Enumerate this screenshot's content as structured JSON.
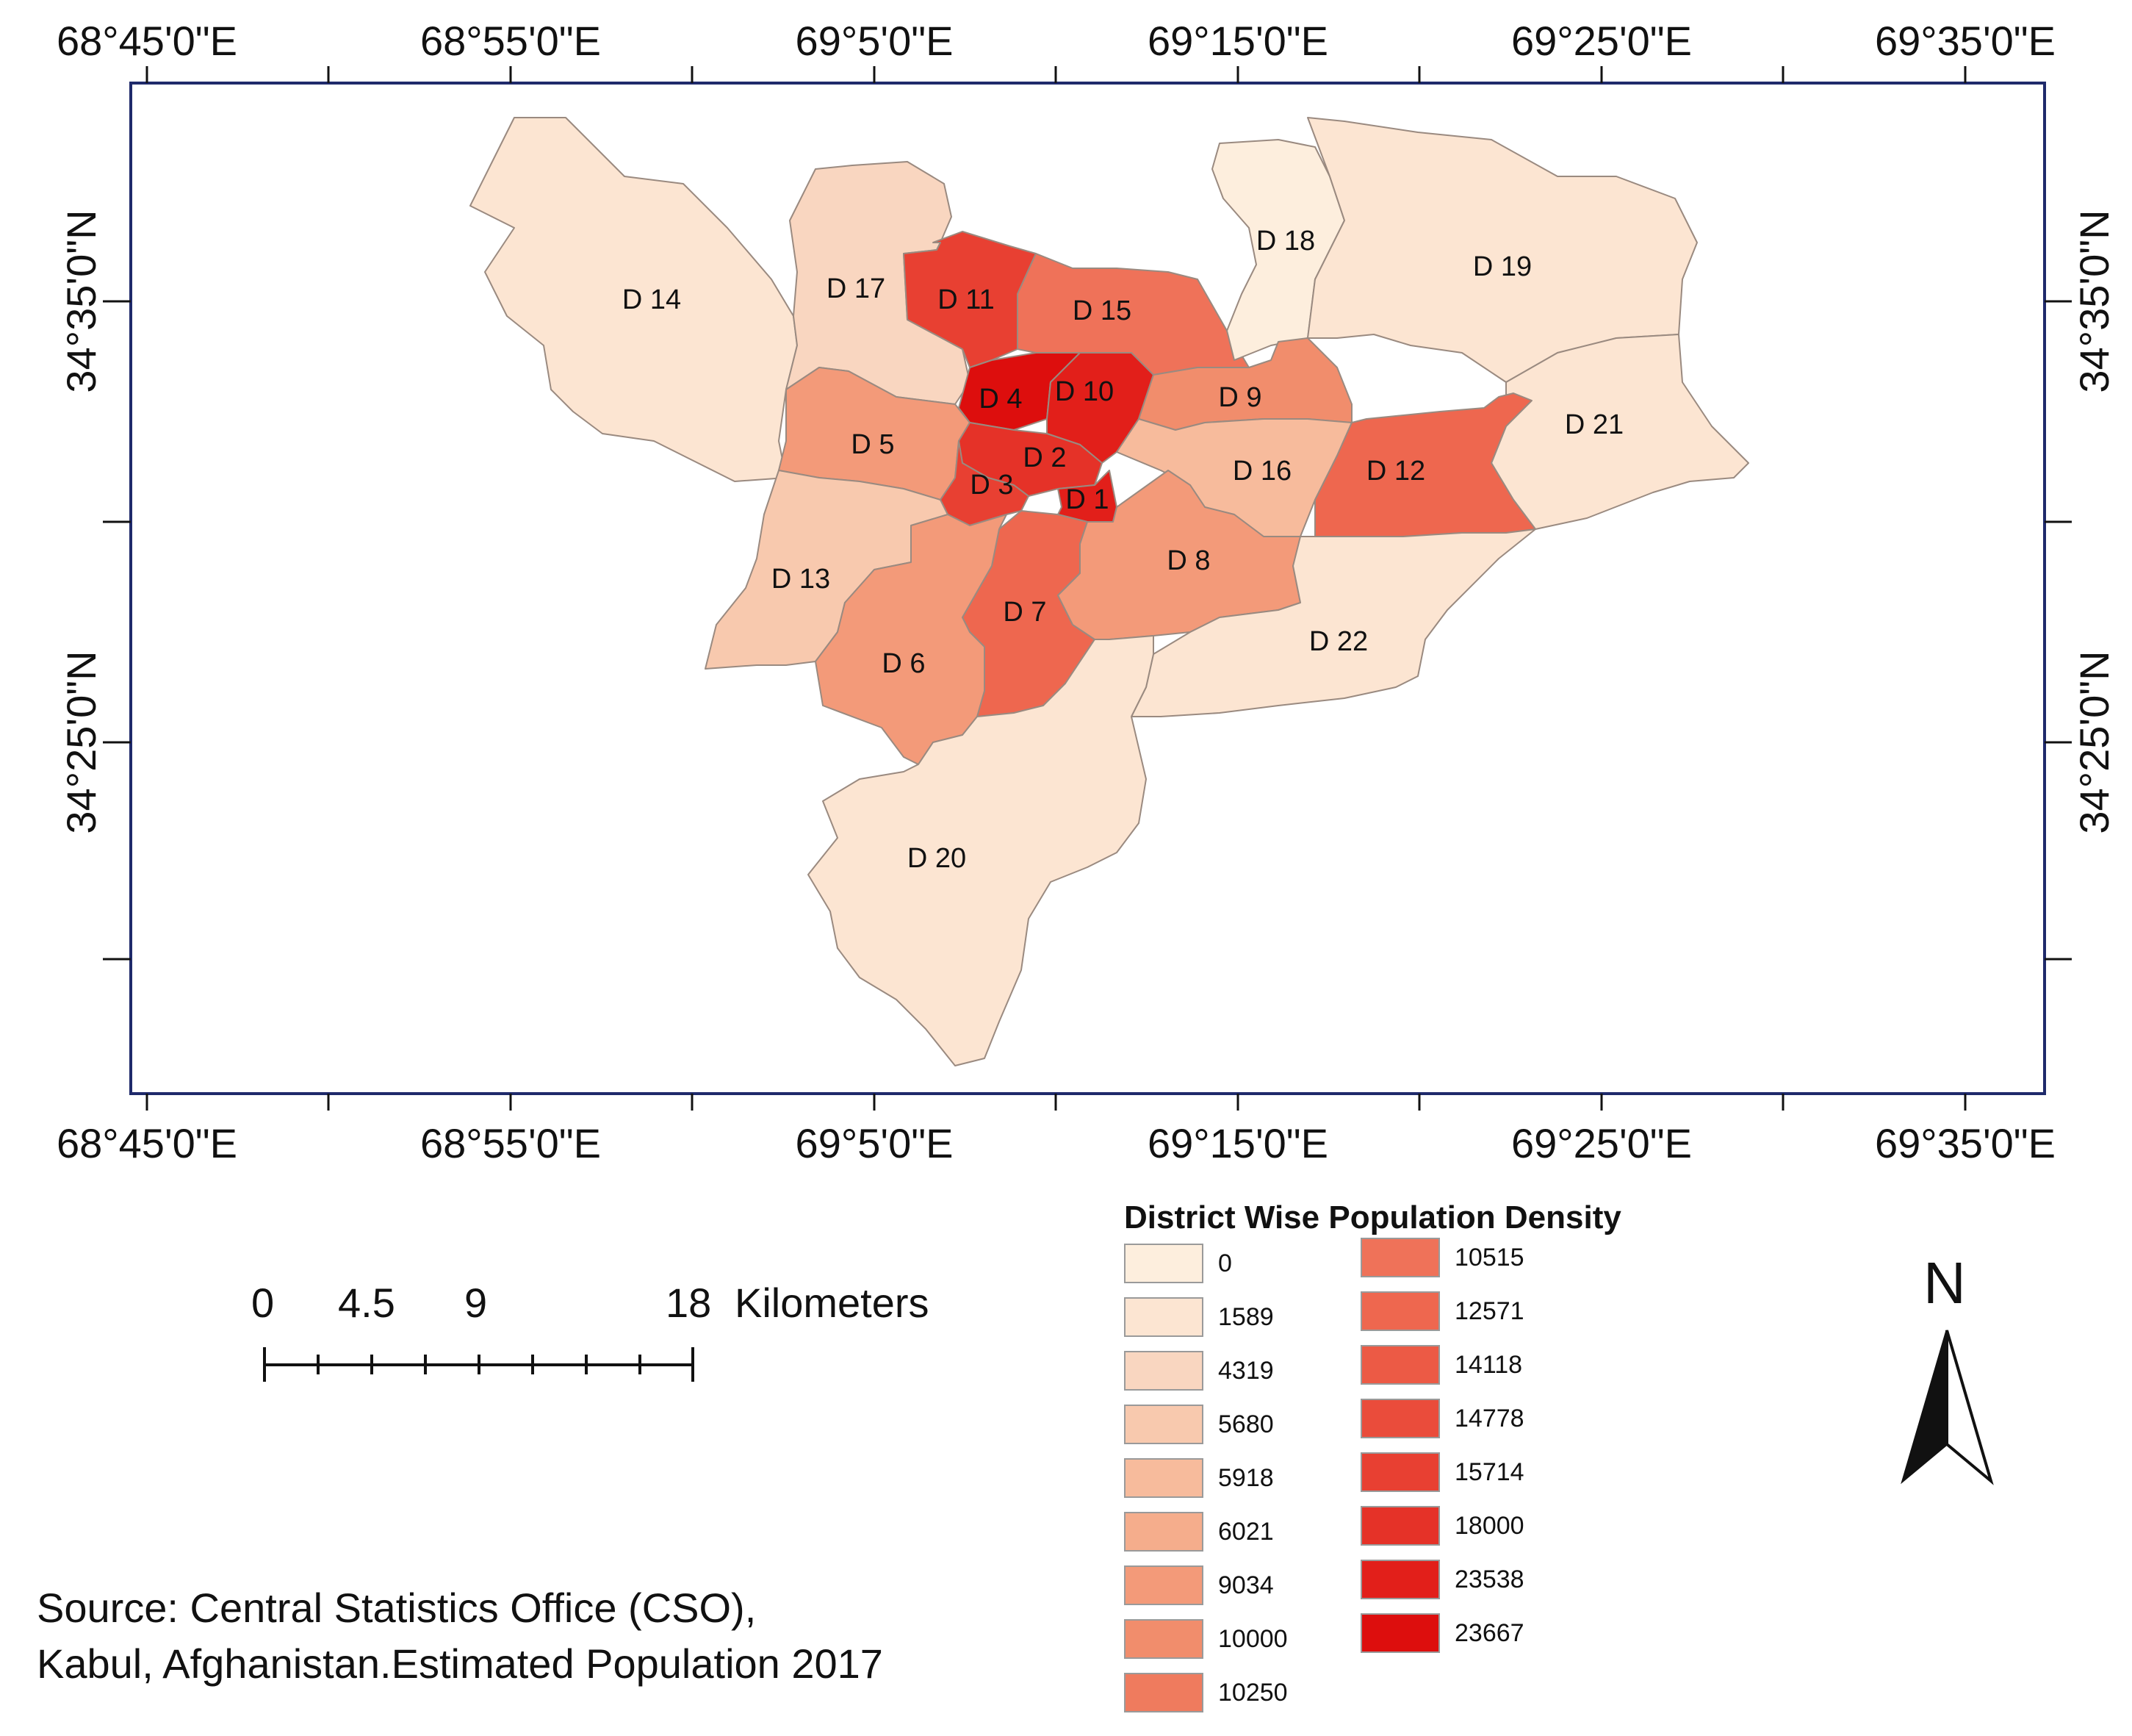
{
  "map": {
    "longitude_labels": [
      "68°45'0\"E",
      "68°55'0\"E",
      "69°5'0\"E",
      "69°15'0\"E",
      "69°25'0\"E",
      "69°35'0\"E"
    ],
    "latitude_labels": [
      "34°35'0\"N",
      "34°25'0\"N"
    ],
    "districts": [
      {
        "name": "D 14",
        "density": 1589
      },
      {
        "name": "D 17",
        "density": 4319
      },
      {
        "name": "D 11",
        "density": 15714
      },
      {
        "name": "D 15",
        "density": 10515
      },
      {
        "name": "D 18",
        "density": 0
      },
      {
        "name": "D 19",
        "density": 1589
      },
      {
        "name": "D 21",
        "density": 1589
      },
      {
        "name": "D 4",
        "density": 23667
      },
      {
        "name": "D 10",
        "density": 23538
      },
      {
        "name": "D 9",
        "density": 10000
      },
      {
        "name": "D 5",
        "density": 9034
      },
      {
        "name": "D 2",
        "density": 18000
      },
      {
        "name": "D 3",
        "density": 15714
      },
      {
        "name": "D 1",
        "density": 23538
      },
      {
        "name": "D 16",
        "density": 5918
      },
      {
        "name": "D 12",
        "density": 12571
      },
      {
        "name": "D 13",
        "density": 5680
      },
      {
        "name": "D 7",
        "density": 12571
      },
      {
        "name": "D 8",
        "density": 9034
      },
      {
        "name": "D 6",
        "density": 9034
      },
      {
        "name": "D 22",
        "density": 1589
      },
      {
        "name": "D 20",
        "density": 1589
      }
    ]
  },
  "legend": {
    "title": "District Wise Population Density",
    "items": [
      {
        "label": "0",
        "color": "#fdeedd"
      },
      {
        "label": "1589",
        "color": "#fce5d2"
      },
      {
        "label": "4319",
        "color": "#f9d6c0"
      },
      {
        "label": "5680",
        "color": "#f8c9ae"
      },
      {
        "label": "5918",
        "color": "#f7bb9c"
      },
      {
        "label": "6021",
        "color": "#f5ad8c"
      },
      {
        "label": "9034",
        "color": "#f39a79"
      },
      {
        "label": "10000",
        "color": "#f18d6c"
      },
      {
        "label": "10250",
        "color": "#ef7b5e"
      },
      {
        "label": "10515",
        "color": "#ef7259"
      },
      {
        "label": "12571",
        "color": "#ee674f"
      },
      {
        "label": "14118",
        "color": "#ec5a45"
      },
      {
        "label": "14778",
        "color": "#ea4c3b"
      },
      {
        "label": "15714",
        "color": "#e84032"
      },
      {
        "label": "18000",
        "color": "#e53228"
      },
      {
        "label": "23538",
        "color": "#e21f1a"
      },
      {
        "label": "23667",
        "color": "#dd0e0d"
      }
    ]
  },
  "scale_bar": {
    "ticks": [
      "0",
      "4.5",
      "9",
      "18"
    ],
    "unit": "Kilometers"
  },
  "north_arrow": {
    "label": "N"
  },
  "source": {
    "line1": "Source: Central Statistics Office (CSO),",
    "line2": "Kabul, Afghanistan.Estimated Population 2017"
  }
}
